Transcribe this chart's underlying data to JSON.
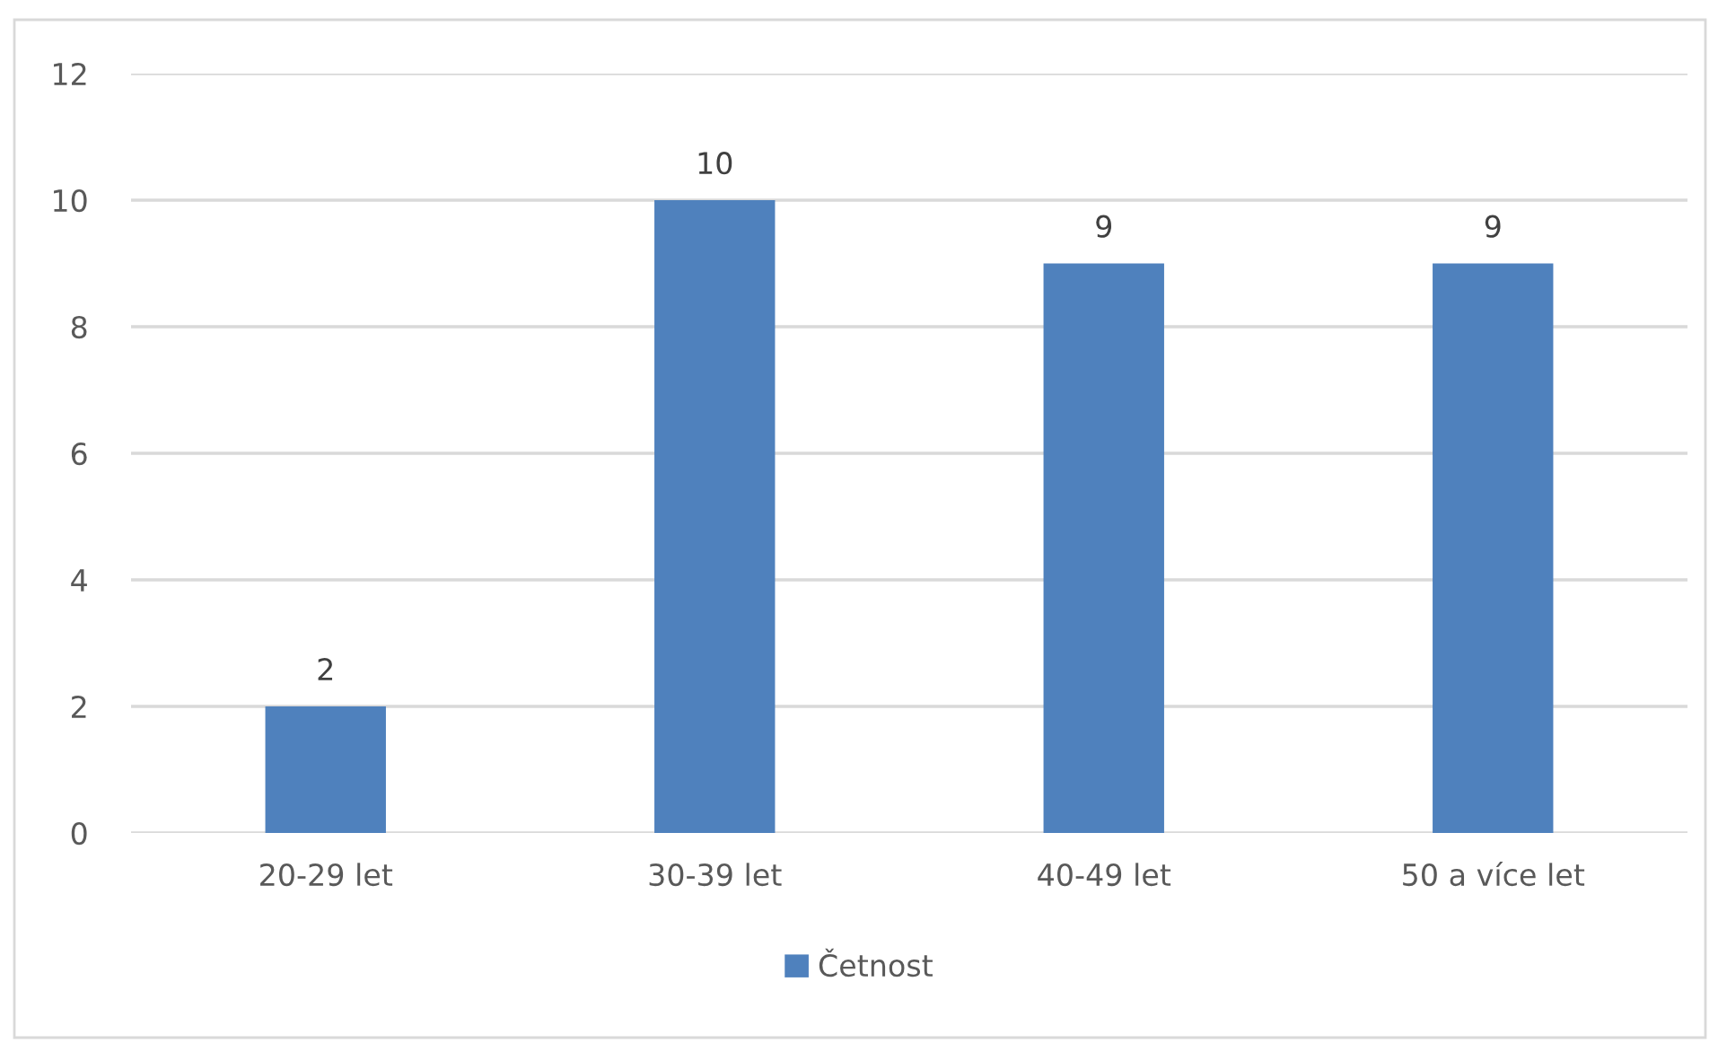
{
  "chart_data": {
    "type": "bar",
    "categories": [
      "20-29 let",
      "30-39 let",
      "40-49 let",
      "50 a více let"
    ],
    "series": [
      {
        "name": "Četnost",
        "color": "#4f81bd",
        "values": [
          2,
          10,
          9,
          9
        ]
      }
    ],
    "ylim": [
      0,
      12
    ],
    "yticks": [
      0,
      2,
      4,
      6,
      8,
      10,
      12
    ],
    "grid": "y",
    "legend": "bottom",
    "data_labels": true
  }
}
